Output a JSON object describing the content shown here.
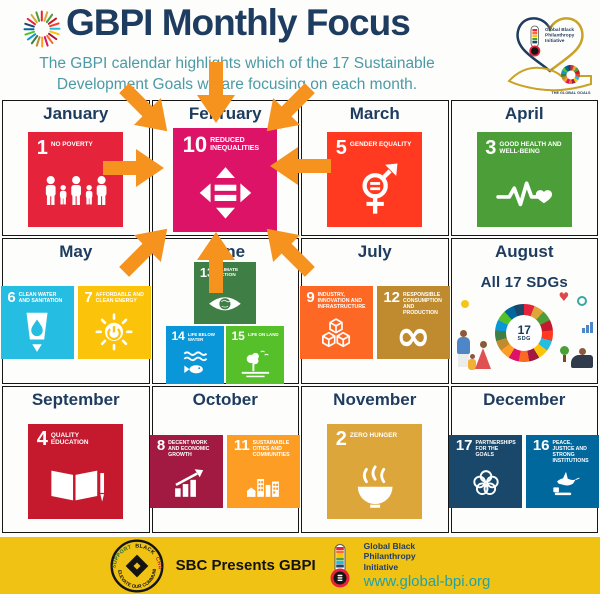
{
  "colors": {
    "navy": "#1E3C5F",
    "teal": "#4C9AA6",
    "accent": "#F6921E",
    "footer_yellow": "#F0C213",
    "grid_line": "#151515",
    "website_teal": "#22A2A8",
    "sbc_green": "#1D6B3A",
    "sbc_red": "#C3272B",
    "bg": "#FDFDFB"
  },
  "sdg_colors": {
    "1": "#E5243B",
    "2": "#DDA63A",
    "3": "#4C9F38",
    "4": "#C5192D",
    "5": "#FF3A21",
    "6": "#26BDE2",
    "7": "#FCC30B",
    "8": "#A21942",
    "9": "#FD6925",
    "10": "#DD1367",
    "11": "#FD9D24",
    "12": "#BF8B2E",
    "13": "#3F7E44",
    "14": "#0A97D9",
    "15": "#56C02B",
    "16": "#00689D",
    "17": "#19486A"
  },
  "sdg_wheel": [
    "#E5243B",
    "#DDA63A",
    "#4C9F38",
    "#C5192D",
    "#FF3A21",
    "#26BDE2",
    "#FCC30B",
    "#A21942",
    "#FD6925",
    "#DD1367",
    "#FD9D24",
    "#BF8B2E",
    "#3F7E44",
    "#0A97D9",
    "#56C02B",
    "#00689D",
    "#19486A"
  ],
  "header": {
    "title": "GBPI Monthly Focus",
    "subtitle": "The GBPI calendar highlights which of the 17 Sustainable Development Goals we are focusing on each month."
  },
  "org_badge": {
    "line1": "Global Black",
    "line2": "Philanthropy",
    "line3": "Initiative",
    "goals_label": "THE GLOBAL GOALS"
  },
  "months": [
    {
      "name": "January",
      "goals": [
        {
          "num": "1",
          "title": "NO POVERTY"
        }
      ]
    },
    {
      "name": "February",
      "goals": [
        {
          "num": "10",
          "title": "REDUCED INEQUALITIES"
        }
      ]
    },
    {
      "name": "March",
      "goals": [
        {
          "num": "5",
          "title": "GENDER EQUALITY"
        }
      ]
    },
    {
      "name": "April",
      "goals": [
        {
          "num": "3",
          "title": "GOOD HEALTH AND WELL-BEING"
        }
      ]
    },
    {
      "name": "May",
      "goals": [
        {
          "num": "6",
          "title": "CLEAN WATER AND SANITATION"
        },
        {
          "num": "7",
          "title": "AFFORDABLE AND CLEAN ENERGY"
        }
      ]
    },
    {
      "name": "June",
      "goals": [
        {
          "num": "13",
          "title": "CLIMATE ACTION"
        },
        {
          "num": "14",
          "title": "LIFE BELOW WATER"
        },
        {
          "num": "15",
          "title": "LIFE ON LAND"
        }
      ]
    },
    {
      "name": "July",
      "goals": [
        {
          "num": "9",
          "title": "INDUSTRY, INNOVATION AND INFRASTRUCTURE"
        },
        {
          "num": "12",
          "title": "RESPONSIBLE CONSUMPTION AND PRODUCTION"
        }
      ]
    },
    {
      "name": "August",
      "label": "All 17 SDGs",
      "wheel_top": "17",
      "wheel_bottom": "SDG",
      "goals": []
    },
    {
      "name": "September",
      "goals": [
        {
          "num": "4",
          "title": "QUALITY EDUCATION"
        }
      ]
    },
    {
      "name": "October",
      "goals": [
        {
          "num": "8",
          "title": "DECENT WORK AND ECONOMIC GROWTH"
        },
        {
          "num": "11",
          "title": "SUSTAINABLE CITIES AND COMMUNITIES"
        }
      ]
    },
    {
      "name": "November",
      "goals": [
        {
          "num": "2",
          "title": "ZERO HUNGER"
        }
      ]
    },
    {
      "name": "December",
      "goals": [
        {
          "num": "17",
          "title": "PARTNERSHIPS FOR THE GOALS"
        },
        {
          "num": "16",
          "title": "PEACE, JUSTICE AND STRONG INSTITUTIONS"
        }
      ]
    }
  ],
  "footer": {
    "arc_top_words": [
      "SUPPORT",
      "BLACK",
      "CHARITIES"
    ],
    "arc_bottom": "ELEVATE OUR COMMUNITY",
    "presents": "SBC Presents GBPI",
    "org_line1": "Global Black",
    "org_line2": "Philanthropy",
    "org_line3": "Initiative",
    "website": "www.global-bpi.org"
  }
}
